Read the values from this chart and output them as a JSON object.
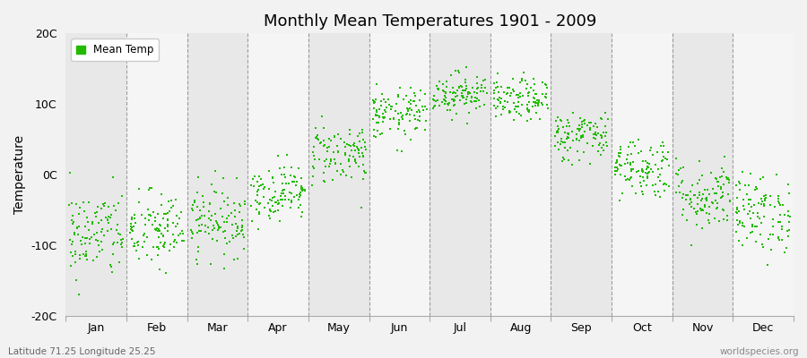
{
  "title": "Monthly Mean Temperatures 1901 - 2009",
  "ylabel": "Temperature",
  "xlabel": "",
  "footer_left": "Latitude 71.25 Longitude 25.25",
  "footer_right": "worldspecies.org",
  "legend_label": "Mean Temp",
  "dot_color": "#22bb00",
  "background_color": "#f2f2f2",
  "band_even_color": "#e8e8e8",
  "band_odd_color": "#f5f5f5",
  "ylim": [
    -20,
    20
  ],
  "yticks": [
    -20,
    -10,
    0,
    10,
    20
  ],
  "ytick_labels": [
    "-20C",
    "-10C",
    "0C",
    "10C",
    "20C"
  ],
  "months": [
    "Jan",
    "Feb",
    "Mar",
    "Apr",
    "May",
    "Jun",
    "Jul",
    "Aug",
    "Sep",
    "Oct",
    "Nov",
    "Dec"
  ],
  "month_means": [
    -8.5,
    -8.0,
    -6.5,
    -2.5,
    3.0,
    8.5,
    11.5,
    10.5,
    5.5,
    1.0,
    -3.0,
    -5.5
  ],
  "month_stds": [
    3.2,
    2.8,
    2.5,
    2.0,
    2.2,
    1.8,
    1.5,
    1.5,
    1.8,
    2.2,
    2.5,
    2.8
  ],
  "num_years": 109,
  "seed": 42,
  "dot_size": 4,
  "title_fontsize": 13,
  "axis_fontsize": 9,
  "ylabel_fontsize": 10
}
